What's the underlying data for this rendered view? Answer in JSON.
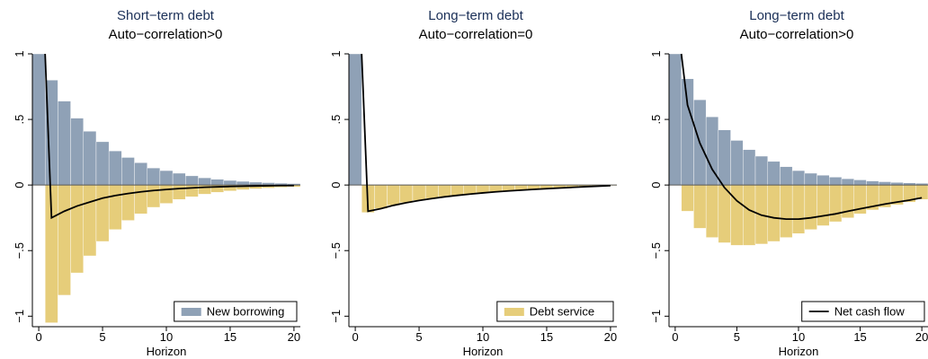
{
  "colors": {
    "new_borrowing": "#8fa1b6",
    "debt_service": "#e6cd7a",
    "net_cash_flow": "#000000",
    "title_top": "#1a2f57",
    "axis": "#000000"
  },
  "chart_data": [
    {
      "type": "bar",
      "title": "Short−term debt",
      "subtitle": "Auto−correlation>0",
      "xlabel": "Horizon",
      "ylabel": "",
      "xlim": [
        -0.5,
        20.5
      ],
      "ylim": [
        -1.08,
        1.0
      ],
      "xticks": [
        0,
        5,
        10,
        15,
        20
      ],
      "xtick_labels": [
        "0",
        "5",
        "10",
        "15",
        "20"
      ],
      "yticks": [
        1,
        0.5,
        0,
        -0.5,
        -1
      ],
      "ytick_labels": [
        "1",
        ".5",
        "0",
        "−.5",
        "−1"
      ],
      "grid": false,
      "legend_position": "bottom-right",
      "x": [
        0,
        1,
        2,
        3,
        4,
        5,
        6,
        7,
        8,
        9,
        10,
        11,
        12,
        13,
        14,
        15,
        16,
        17,
        18,
        19,
        20
      ],
      "series": [
        {
          "name": "New borrowing",
          "kind": "bar",
          "color": "#8fa1b6",
          "values": [
            1.0,
            0.8,
            0.64,
            0.51,
            0.41,
            0.33,
            0.26,
            0.21,
            0.17,
            0.13,
            0.11,
            0.09,
            0.07,
            0.055,
            0.044,
            0.035,
            0.028,
            0.022,
            0.018,
            0.014,
            0.011
          ]
        },
        {
          "name": "Debt service",
          "kind": "bar",
          "color": "#e6cd7a",
          "values": [
            0,
            -1.05,
            -0.84,
            -0.67,
            -0.54,
            -0.43,
            -0.34,
            -0.27,
            -0.22,
            -0.17,
            -0.14,
            -0.11,
            -0.09,
            -0.07,
            -0.056,
            -0.045,
            -0.036,
            -0.029,
            -0.023,
            -0.018,
            -0.015
          ]
        },
        {
          "name": "Net cash flow",
          "kind": "line",
          "color": "#000000",
          "values": [
            1.0,
            -0.25,
            -0.2,
            -0.16,
            -0.13,
            -0.1,
            -0.08,
            -0.065,
            -0.052,
            -0.042,
            -0.034,
            -0.027,
            -0.022,
            -0.017,
            -0.014,
            -0.011,
            -0.009,
            -0.007,
            -0.006,
            -0.004,
            -0.004
          ]
        }
      ],
      "legend": {
        "label": "New borrowing",
        "swatch": "bar",
        "color": "#8fa1b6"
      }
    },
    {
      "type": "bar",
      "title": "Long−term debt",
      "subtitle": "Auto−correlation=0",
      "xlabel": "Horizon",
      "ylabel": "",
      "xlim": [
        -0.5,
        20.5
      ],
      "ylim": [
        -1.08,
        1.0
      ],
      "xticks": [
        0,
        5,
        10,
        15,
        20
      ],
      "xtick_labels": [
        "0",
        "5",
        "10",
        "15",
        "20"
      ],
      "yticks": [
        1,
        0.5,
        0,
        -0.5,
        -1
      ],
      "ytick_labels": [
        "1",
        ".5",
        "0",
        "−.5",
        "−1"
      ],
      "grid": false,
      "legend_position": "bottom-right",
      "x": [
        0,
        1,
        2,
        3,
        4,
        5,
        6,
        7,
        8,
        9,
        10,
        11,
        12,
        13,
        14,
        15,
        16,
        17,
        18,
        19,
        20
      ],
      "series": [
        {
          "name": "New borrowing",
          "kind": "bar",
          "color": "#8fa1b6",
          "values": [
            1.0,
            0,
            0,
            0,
            0,
            0,
            0,
            0,
            0,
            0,
            0,
            0,
            0,
            0,
            0,
            0,
            0,
            0,
            0,
            0,
            0
          ]
        },
        {
          "name": "Debt service",
          "kind": "bar",
          "color": "#e6cd7a",
          "values": [
            0,
            -0.21,
            -0.18,
            -0.155,
            -0.135,
            -0.118,
            -0.103,
            -0.09,
            -0.079,
            -0.069,
            -0.06,
            -0.052,
            -0.045,
            -0.039,
            -0.033,
            -0.028,
            -0.023,
            -0.018,
            -0.013,
            -0.009,
            -0.005
          ]
        },
        {
          "name": "Net cash flow",
          "kind": "line",
          "color": "#000000",
          "values": [
            1.0,
            -0.2,
            -0.18,
            -0.155,
            -0.135,
            -0.118,
            -0.103,
            -0.09,
            -0.079,
            -0.069,
            -0.06,
            -0.052,
            -0.045,
            -0.039,
            -0.033,
            -0.028,
            -0.023,
            -0.018,
            -0.013,
            -0.009,
            -0.005
          ]
        }
      ],
      "legend": {
        "label": "Debt service",
        "swatch": "bar",
        "color": "#e6cd7a"
      }
    },
    {
      "type": "bar",
      "title": "Long−term debt",
      "subtitle": "Auto−correlation>0",
      "xlabel": "Horizon",
      "ylabel": "",
      "xlim": [
        -0.5,
        20.5
      ],
      "ylim": [
        -1.08,
        1.0
      ],
      "xticks": [
        0,
        5,
        10,
        15,
        20
      ],
      "xtick_labels": [
        "0",
        "5",
        "10",
        "15",
        "20"
      ],
      "yticks": [
        1,
        0.5,
        0,
        -0.5,
        -1
      ],
      "ytick_labels": [
        "1",
        ".5",
        "0",
        "−.5",
        "−1"
      ],
      "grid": false,
      "legend_position": "bottom-right",
      "x": [
        0,
        1,
        2,
        3,
        4,
        5,
        6,
        7,
        8,
        9,
        10,
        11,
        12,
        13,
        14,
        15,
        16,
        17,
        18,
        19,
        20
      ],
      "series": [
        {
          "name": "New borrowing",
          "kind": "bar",
          "color": "#8fa1b6",
          "values": [
            1.0,
            0.81,
            0.65,
            0.52,
            0.42,
            0.34,
            0.27,
            0.22,
            0.18,
            0.14,
            0.11,
            0.09,
            0.075,
            0.06,
            0.048,
            0.039,
            0.031,
            0.025,
            0.02,
            0.016,
            0.013
          ]
        },
        {
          "name": "Debt service",
          "kind": "bar",
          "color": "#e6cd7a",
          "values": [
            0,
            -0.2,
            -0.33,
            -0.4,
            -0.44,
            -0.46,
            -0.46,
            -0.45,
            -0.43,
            -0.4,
            -0.37,
            -0.34,
            -0.31,
            -0.28,
            -0.25,
            -0.22,
            -0.19,
            -0.17,
            -0.15,
            -0.13,
            -0.11
          ]
        },
        {
          "name": "Net cash flow",
          "kind": "line",
          "color": "#000000",
          "values": [
            1.0,
            0.61,
            0.32,
            0.12,
            -0.02,
            -0.12,
            -0.19,
            -0.23,
            -0.25,
            -0.26,
            -0.26,
            -0.25,
            -0.235,
            -0.22,
            -0.2,
            -0.181,
            -0.163,
            -0.145,
            -0.13,
            -0.115,
            -0.097
          ]
        }
      ],
      "legend": {
        "label": "Net cash flow",
        "swatch": "line",
        "color": "#000000"
      }
    }
  ]
}
